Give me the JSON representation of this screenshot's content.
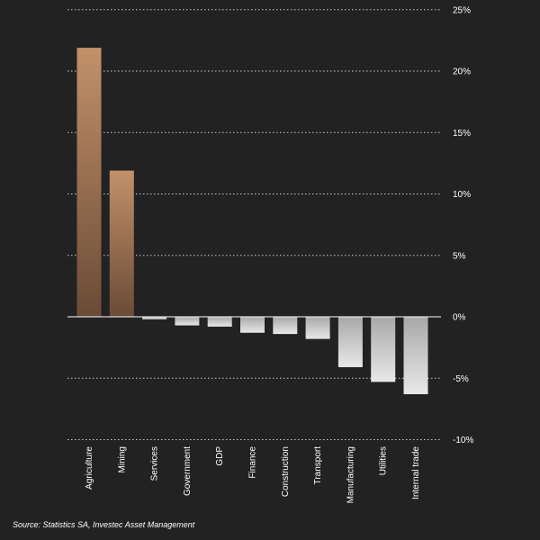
{
  "chart_data": {
    "type": "bar",
    "categories": [
      "Agriculture",
      "Mining",
      "Services",
      "Government",
      "GDP",
      "Finance",
      "Construction",
      "Transport",
      "Manufacturing",
      "Utilities",
      "Internal trade"
    ],
    "values": [
      21.9,
      11.9,
      -0.2,
      -0.7,
      -0.8,
      -1.3,
      -1.4,
      -1.8,
      -4.1,
      -5.3,
      -6.3
    ],
    "yticks": [
      25,
      20,
      15,
      10,
      5,
      0,
      -5,
      -10
    ],
    "ytick_labels": [
      "25%",
      "20%",
      "15%",
      "10%",
      "5%",
      "0%",
      "-5%",
      "-10%"
    ],
    "ylim": [
      -10,
      25
    ],
    "grid": true,
    "axis_position": "right",
    "colors": {
      "positive_top": "#c2916a",
      "positive_bottom": "#6a4b36",
      "negative_top": "#a8a8a8",
      "negative_bottom": "#e8e8e8",
      "grid": "#cccccc",
      "zero_line": "#ffffff"
    }
  },
  "footer": {
    "source": "Source: Statistics SA, Investec Asset Management"
  }
}
